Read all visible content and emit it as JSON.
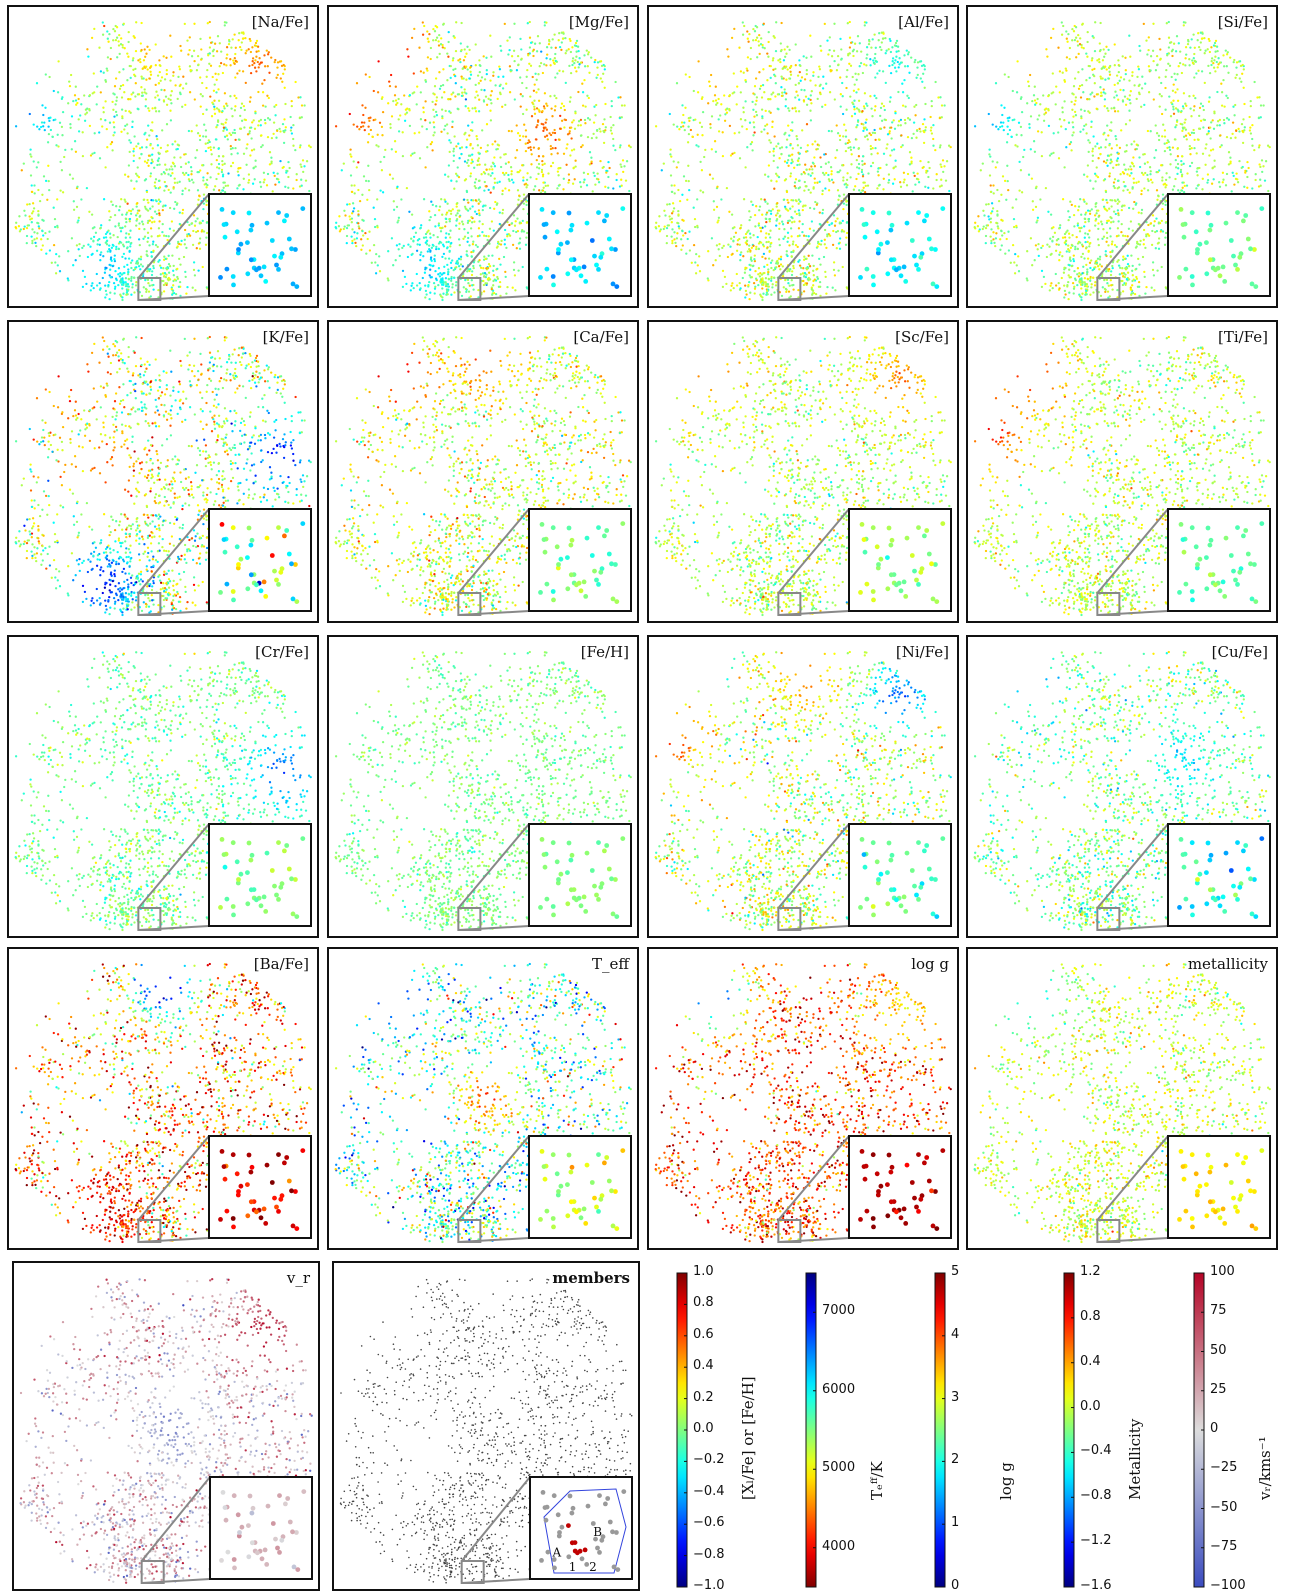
{
  "chart_data": [
    {
      "type": "scatter",
      "panel_label": "[Na/Fe]",
      "colormap": "jet",
      "color_range": [
        -1.0,
        1.0
      ],
      "field_mean": 0.05,
      "field_spread": 0.18,
      "inset_mean": -0.35,
      "inset_spread": 0.08,
      "regions": [
        {
          "loc": "top-right",
          "value": 0.55
        },
        {
          "loc": "top",
          "value": 0.4
        },
        {
          "loc": "left",
          "value": -0.45
        },
        {
          "loc": "bottom-left",
          "value": -0.35
        }
      ]
    },
    {
      "type": "scatter",
      "panel_label": "[Mg/Fe]",
      "colormap": "jet",
      "color_range": [
        -1.0,
        1.0
      ],
      "field_mean": 0.05,
      "field_spread": 0.2,
      "inset_mean": -0.35,
      "inset_spread": 0.1,
      "regions": [
        {
          "loc": "top-left",
          "value": 0.85
        },
        {
          "loc": "mid-right",
          "value": 0.55
        },
        {
          "loc": "left",
          "value": 0.7
        },
        {
          "loc": "bottom-left",
          "value": -0.35
        }
      ]
    },
    {
      "type": "scatter",
      "panel_label": "[Al/Fe]",
      "colormap": "jet",
      "color_range": [
        -1.0,
        1.0
      ],
      "field_mean": 0.1,
      "field_spread": 0.18,
      "inset_mean": -0.25,
      "inset_spread": 0.08,
      "regions": [
        {
          "loc": "top-left",
          "value": 0.45
        },
        {
          "loc": "top-right",
          "value": -0.2
        }
      ]
    },
    {
      "type": "scatter",
      "panel_label": "[Si/Fe]",
      "colormap": "jet",
      "color_range": [
        -1.0,
        1.0
      ],
      "field_mean": 0.08,
      "field_spread": 0.15,
      "inset_mean": -0.05,
      "inset_spread": 0.08,
      "regions": [
        {
          "loc": "top-left",
          "value": 0.4
        },
        {
          "loc": "left",
          "value": -0.45
        }
      ]
    },
    {
      "type": "scatter",
      "panel_label": "[K/Fe]",
      "colormap": "jet",
      "color_range": [
        -1.0,
        1.0
      ],
      "field_mean": 0.1,
      "field_spread": 0.3,
      "inset_mean": 0.0,
      "inset_spread": 0.3,
      "regions": [
        {
          "loc": "top-left",
          "value": 0.85
        },
        {
          "loc": "mid-left",
          "value": 0.6
        },
        {
          "loc": "right",
          "value": -0.7
        },
        {
          "loc": "bottom-left",
          "value": -0.75
        }
      ]
    },
    {
      "type": "scatter",
      "panel_label": "[Ca/Fe]",
      "colormap": "jet",
      "color_range": [
        -1.0,
        1.0
      ],
      "field_mean": 0.15,
      "field_spread": 0.2,
      "inset_mean": -0.05,
      "inset_spread": 0.1,
      "regions": [
        {
          "loc": "top-left",
          "value": 0.8
        },
        {
          "loc": "top",
          "value": 0.55
        }
      ]
    },
    {
      "type": "scatter",
      "panel_label": "[Sc/Fe]",
      "colormap": "jet",
      "color_range": [
        -1.0,
        1.0
      ],
      "field_mean": 0.1,
      "field_spread": 0.15,
      "inset_mean": 0.05,
      "inset_spread": 0.12,
      "regions": [
        {
          "loc": "top-left",
          "value": 0.55
        },
        {
          "loc": "top-right",
          "value": 0.5
        }
      ]
    },
    {
      "type": "scatter",
      "panel_label": "[Ti/Fe]",
      "colormap": "jet",
      "color_range": [
        -1.0,
        1.0
      ],
      "field_mean": 0.12,
      "field_spread": 0.15,
      "inset_mean": -0.05,
      "inset_spread": 0.08,
      "regions": [
        {
          "loc": "top-left",
          "value": 0.75
        },
        {
          "loc": "left",
          "value": 0.8
        }
      ]
    },
    {
      "type": "scatter",
      "panel_label": "[Cr/Fe]",
      "colormap": "jet",
      "color_range": [
        -1.0,
        1.0
      ],
      "field_mean": -0.02,
      "field_spread": 0.12,
      "inset_mean": 0.0,
      "inset_spread": 0.08,
      "regions": [
        {
          "loc": "right",
          "value": -0.55
        }
      ]
    },
    {
      "type": "scatter",
      "panel_label": "[Fe/H]",
      "colormap": "jet",
      "color_range": [
        -1.0,
        1.0
      ],
      "field_mean": 0.0,
      "field_spread": 0.08,
      "inset_mean": 0.0,
      "inset_spread": 0.05,
      "regions": []
    },
    {
      "type": "scatter",
      "panel_label": "[Ni/Fe]",
      "colormap": "jet",
      "color_range": [
        -1.0,
        1.0
      ],
      "field_mean": 0.1,
      "field_spread": 0.2,
      "inset_mean": -0.1,
      "inset_spread": 0.1,
      "regions": [
        {
          "loc": "left",
          "value": 0.6
        },
        {
          "loc": "top-right",
          "value": -0.55
        },
        {
          "loc": "top",
          "value": 0.45
        }
      ]
    },
    {
      "type": "scatter",
      "panel_label": "[Cu/Fe]",
      "colormap": "jet",
      "color_range": [
        -1.0,
        1.0
      ],
      "field_mean": 0.0,
      "field_spread": 0.18,
      "inset_mean": -0.2,
      "inset_spread": 0.15,
      "regions": [
        {
          "loc": "top-left",
          "value": -0.35
        },
        {
          "loc": "mid-right",
          "value": -0.3
        }
      ]
    },
    {
      "type": "scatter",
      "panel_label": "[Ba/Fe]",
      "colormap": "jet",
      "color_range": [
        -1.0,
        1.0
      ],
      "field_mean": 0.5,
      "field_spread": 0.35,
      "inset_mean": 0.8,
      "inset_spread": 0.15,
      "regions": [
        {
          "loc": "top",
          "value": -0.8
        },
        {
          "loc": "bottom-left",
          "value": 0.8
        }
      ]
    },
    {
      "type": "scatter",
      "panel_label": "T_eff",
      "colormap": "jet",
      "color_range": [
        3500,
        7500
      ],
      "field_mean": 5300,
      "field_spread": 700,
      "inset_mean": 5800,
      "inset_spread": 250,
      "regions": [
        {
          "loc": "center",
          "value": 6500
        },
        {
          "loc": "top-left",
          "value": 4300
        }
      ]
    },
    {
      "type": "scatter",
      "panel_label": "log g",
      "colormap": "jet",
      "color_range": [
        0,
        5
      ],
      "field_mean": 4.0,
      "field_spread": 0.6,
      "inset_mean": 4.7,
      "inset_spread": 0.2,
      "regions": [
        {
          "loc": "top-left",
          "value": 1.0
        },
        {
          "loc": "top-right",
          "value": 3.2
        }
      ]
    },
    {
      "type": "scatter",
      "panel_label": "metallicity",
      "colormap": "jet",
      "color_range": [
        -1.6,
        1.2
      ],
      "field_mean": 0.0,
      "field_spread": 0.2,
      "inset_mean": 0.2,
      "inset_spread": 0.1,
      "regions": [
        {
          "loc": "top-left",
          "value": -0.6
        }
      ]
    },
    {
      "type": "scatter",
      "panel_label": "v_r",
      "colormap": "coolwarm",
      "color_range": [
        -100,
        100
      ],
      "field_mean": 10,
      "field_spread": 35,
      "inset_mean": 15,
      "inset_spread": 15,
      "regions": [
        {
          "loc": "top-right",
          "value": 80
        },
        {
          "loc": "center",
          "value": -50
        }
      ]
    },
    {
      "type": "scatter",
      "panel_label": "members",
      "colormap": "gray",
      "members": [
        "A",
        "B",
        "1",
        "2"
      ]
    }
  ],
  "colorbars": [
    {
      "label": "[Xₗ/Fe] or [Fe/H]",
      "colormap": "jet",
      "range": [
        -1.0,
        1.0
      ],
      "ticks": [
        "1.0",
        "0.8",
        "0.6",
        "0.4",
        "0.2",
        "0.0",
        "−0.2",
        "−0.4",
        "−0.6",
        "−0.8",
        "−1.0"
      ],
      "tick_values": [
        1.0,
        0.8,
        0.6,
        0.4,
        0.2,
        0.0,
        -0.2,
        -0.4,
        -0.6,
        -0.8,
        -1.0
      ]
    },
    {
      "label": "Tₑᶠᶠ/K",
      "colormap": "jet_reversed",
      "range": [
        3500,
        7500
      ],
      "ticks": [
        "7000",
        "6000",
        "5000",
        "4000"
      ],
      "tick_values": [
        7000,
        6000,
        5000,
        4000
      ]
    },
    {
      "label": "log g",
      "colormap": "jet",
      "range": [
        0,
        5
      ],
      "ticks": [
        "5",
        "4",
        "3",
        "2",
        "1",
        "0"
      ],
      "tick_values": [
        5,
        4,
        3,
        2,
        1,
        0
      ]
    },
    {
      "label": "Metallicity",
      "colormap": "jet",
      "range": [
        -1.6,
        1.2
      ],
      "ticks": [
        "1.2",
        "0.8",
        "0.4",
        "0.0",
        "−0.4",
        "−0.8",
        "−1.2",
        "−1.6"
      ],
      "tick_values": [
        1.2,
        0.8,
        0.4,
        0.0,
        -0.4,
        -0.8,
        -1.2,
        -1.6
      ]
    },
    {
      "label": "vᵣ/kms⁻¹",
      "colormap": "coolwarm",
      "range": [
        -100,
        100
      ],
      "ticks": [
        "100",
        "75",
        "50",
        "25",
        "0",
        "−25",
        "−50",
        "−75",
        "−100"
      ],
      "tick_values": [
        100,
        75,
        50,
        25,
        0,
        -25,
        -50,
        -75,
        -100
      ]
    }
  ]
}
